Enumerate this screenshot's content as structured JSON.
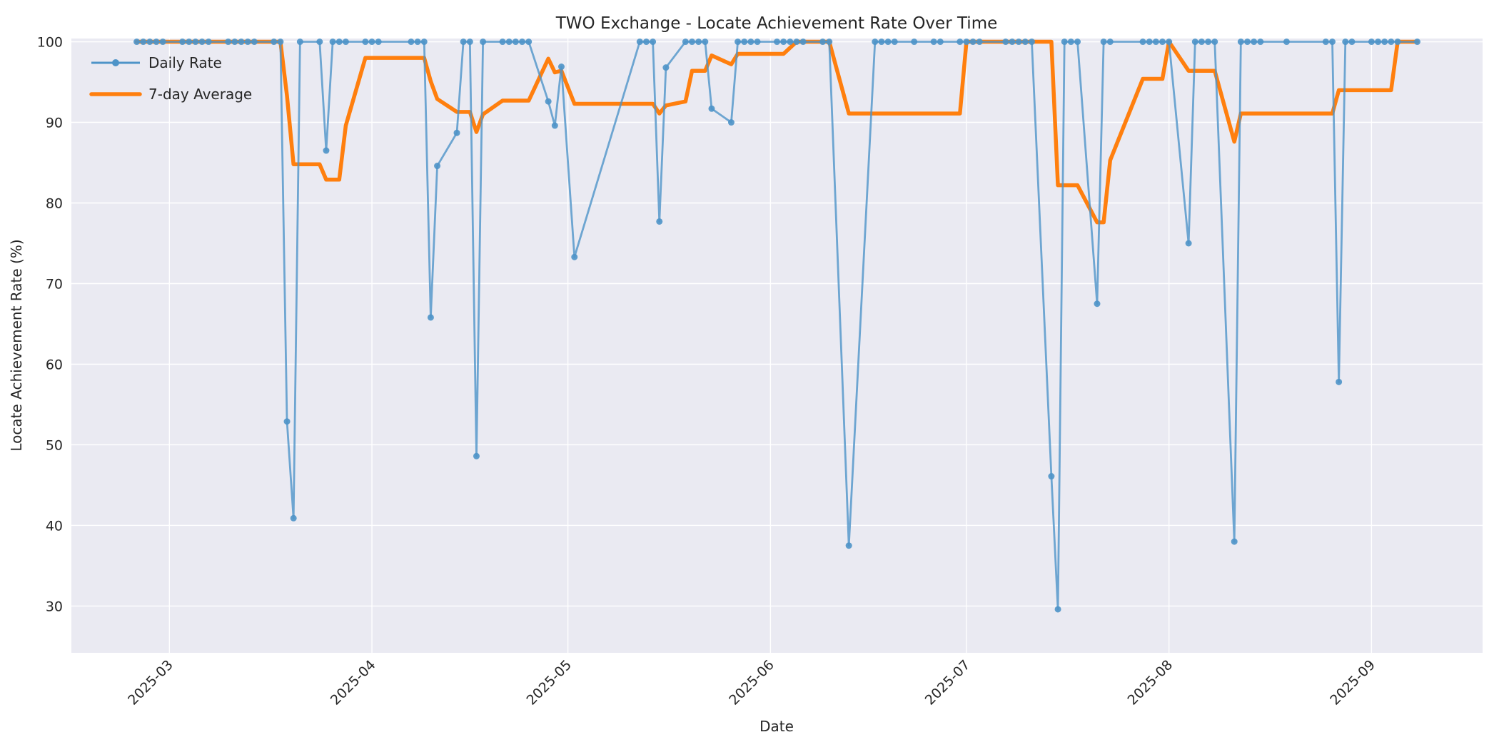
{
  "chart_data": {
    "type": "line",
    "title": "TWO Exchange - Locate Achievement Rate Over Time",
    "xlabel": "Date",
    "ylabel": "Locate Achievement Rate (%)",
    "x_tick_labels": [
      "2025-03",
      "2025-04",
      "2025-05",
      "2025-06",
      "2025-07",
      "2025-08",
      "2025-09"
    ],
    "x_tick_dates": [
      "2025-03-01",
      "2025-04-01",
      "2025-05-01",
      "2025-06-01",
      "2025-07-01",
      "2025-08-01",
      "2025-09-01"
    ],
    "y_ticks": [
      30,
      40,
      50,
      60,
      70,
      80,
      90,
      100
    ],
    "ylim": [
      24.2,
      100.4
    ],
    "xlim": [
      "2025-02-14",
      "2025-09-18"
    ],
    "grid": true,
    "legend_position": "upper-left",
    "colors": {
      "daily_line": "#4E94C8",
      "avg_line": "#FF7F0E",
      "plot_background": "#EAEAF2",
      "gridline": "#FFFFFF",
      "text": "#262626",
      "figure_background": "#FFFFFF"
    },
    "series": [
      {
        "name": "Daily Rate",
        "style": "line-with-markers",
        "points": [
          [
            "2025-02-24",
            100
          ],
          [
            "2025-02-25",
            100
          ],
          [
            "2025-02-26",
            100
          ],
          [
            "2025-02-27",
            100
          ],
          [
            "2025-02-28",
            100
          ],
          [
            "2025-03-03",
            100
          ],
          [
            "2025-03-04",
            100
          ],
          [
            "2025-03-05",
            100
          ],
          [
            "2025-03-06",
            100
          ],
          [
            "2025-03-07",
            100
          ],
          [
            "2025-03-10",
            100
          ],
          [
            "2025-03-11",
            100
          ],
          [
            "2025-03-12",
            100
          ],
          [
            "2025-03-13",
            100
          ],
          [
            "2025-03-14",
            100
          ],
          [
            "2025-03-17",
            100
          ],
          [
            "2025-03-18",
            100
          ],
          [
            "2025-03-19",
            52.9
          ],
          [
            "2025-03-20",
            40.9
          ],
          [
            "2025-03-21",
            100
          ],
          [
            "2025-03-24",
            100
          ],
          [
            "2025-03-25",
            86.5
          ],
          [
            "2025-03-26",
            100
          ],
          [
            "2025-03-27",
            100
          ],
          [
            "2025-03-28",
            100
          ],
          [
            "2025-03-31",
            100
          ],
          [
            "2025-04-01",
            100
          ],
          [
            "2025-04-02",
            100
          ],
          [
            "2025-04-07",
            100
          ],
          [
            "2025-04-08",
            100
          ],
          [
            "2025-04-09",
            100
          ],
          [
            "2025-04-10",
            65.8
          ],
          [
            "2025-04-11",
            84.6
          ],
          [
            "2025-04-14",
            88.7
          ],
          [
            "2025-04-15",
            100
          ],
          [
            "2025-04-16",
            100
          ],
          [
            "2025-04-17",
            48.6
          ],
          [
            "2025-04-18",
            100
          ],
          [
            "2025-04-21",
            100
          ],
          [
            "2025-04-22",
            100
          ],
          [
            "2025-04-23",
            100
          ],
          [
            "2025-04-24",
            100
          ],
          [
            "2025-04-25",
            100
          ],
          [
            "2025-04-28",
            92.6
          ],
          [
            "2025-04-29",
            89.6
          ],
          [
            "2025-04-30",
            96.9
          ],
          [
            "2025-05-02",
            73.3
          ],
          [
            "2025-05-12",
            100
          ],
          [
            "2025-05-13",
            100
          ],
          [
            "2025-05-14",
            100
          ],
          [
            "2025-05-15",
            77.7
          ],
          [
            "2025-05-16",
            96.8
          ],
          [
            "2025-05-19",
            100
          ],
          [
            "2025-05-20",
            100
          ],
          [
            "2025-05-21",
            100
          ],
          [
            "2025-05-22",
            100
          ],
          [
            "2025-05-23",
            91.7
          ],
          [
            "2025-05-26",
            90.0
          ],
          [
            "2025-05-27",
            100
          ],
          [
            "2025-05-28",
            100
          ],
          [
            "2025-05-29",
            100
          ],
          [
            "2025-05-30",
            100
          ],
          [
            "2025-06-02",
            100
          ],
          [
            "2025-06-03",
            100
          ],
          [
            "2025-06-04",
            100
          ],
          [
            "2025-06-05",
            100
          ],
          [
            "2025-06-06",
            100
          ],
          [
            "2025-06-09",
            100
          ],
          [
            "2025-06-10",
            100
          ],
          [
            "2025-06-13",
            37.5
          ],
          [
            "2025-06-17",
            100
          ],
          [
            "2025-06-18",
            100
          ],
          [
            "2025-06-19",
            100
          ],
          [
            "2025-06-20",
            100
          ],
          [
            "2025-06-23",
            100
          ],
          [
            "2025-06-26",
            100
          ],
          [
            "2025-06-27",
            100
          ],
          [
            "2025-06-30",
            100
          ],
          [
            "2025-07-01",
            100
          ],
          [
            "2025-07-02",
            100
          ],
          [
            "2025-07-03",
            100
          ],
          [
            "2025-07-07",
            100
          ],
          [
            "2025-07-08",
            100
          ],
          [
            "2025-07-09",
            100
          ],
          [
            "2025-07-10",
            100
          ],
          [
            "2025-07-11",
            100
          ],
          [
            "2025-07-14",
            46.1
          ],
          [
            "2025-07-15",
            29.6
          ],
          [
            "2025-07-16",
            100
          ],
          [
            "2025-07-17",
            100
          ],
          [
            "2025-07-18",
            100
          ],
          [
            "2025-07-21",
            67.5
          ],
          [
            "2025-07-22",
            100
          ],
          [
            "2025-07-23",
            100
          ],
          [
            "2025-07-28",
            100
          ],
          [
            "2025-07-29",
            100
          ],
          [
            "2025-07-30",
            100
          ],
          [
            "2025-07-31",
            100
          ],
          [
            "2025-08-01",
            100
          ],
          [
            "2025-08-04",
            75.0
          ],
          [
            "2025-08-05",
            100
          ],
          [
            "2025-08-06",
            100
          ],
          [
            "2025-08-07",
            100
          ],
          [
            "2025-08-08",
            100
          ],
          [
            "2025-08-11",
            38.0
          ],
          [
            "2025-08-12",
            100
          ],
          [
            "2025-08-13",
            100
          ],
          [
            "2025-08-14",
            100
          ],
          [
            "2025-08-15",
            100
          ],
          [
            "2025-08-19",
            100
          ],
          [
            "2025-08-25",
            100
          ],
          [
            "2025-08-26",
            100
          ],
          [
            "2025-08-27",
            57.8
          ],
          [
            "2025-08-28",
            100
          ],
          [
            "2025-08-29",
            100
          ],
          [
            "2025-09-01",
            100
          ],
          [
            "2025-09-02",
            100
          ],
          [
            "2025-09-03",
            100
          ],
          [
            "2025-09-04",
            100
          ],
          [
            "2025-09-05",
            100
          ],
          [
            "2025-09-08",
            100
          ]
        ]
      },
      {
        "name": "7-day Average",
        "style": "line",
        "points": [
          [
            "2025-02-24",
            100
          ],
          [
            "2025-03-18",
            100
          ],
          [
            "2025-03-19",
            93.3
          ],
          [
            "2025-03-20",
            84.8
          ],
          [
            "2025-03-24",
            84.8
          ],
          [
            "2025-03-25",
            82.9
          ],
          [
            "2025-03-27",
            82.9
          ],
          [
            "2025-03-28",
            89.6
          ],
          [
            "2025-03-31",
            98.0
          ],
          [
            "2025-04-09",
            98.0
          ],
          [
            "2025-04-10",
            95.1
          ],
          [
            "2025-04-11",
            92.9
          ],
          [
            "2025-04-14",
            91.3
          ],
          [
            "2025-04-16",
            91.3
          ],
          [
            "2025-04-17",
            88.8
          ],
          [
            "2025-04-18",
            91.0
          ],
          [
            "2025-04-21",
            92.7
          ],
          [
            "2025-04-25",
            92.7
          ],
          [
            "2025-04-28",
            97.9
          ],
          [
            "2025-04-29",
            96.2
          ],
          [
            "2025-04-30",
            96.4
          ],
          [
            "2025-05-02",
            92.3
          ],
          [
            "2025-05-14",
            92.3
          ],
          [
            "2025-05-15",
            91.1
          ],
          [
            "2025-05-16",
            92.1
          ],
          [
            "2025-05-19",
            92.6
          ],
          [
            "2025-05-20",
            96.4
          ],
          [
            "2025-05-22",
            96.4
          ],
          [
            "2025-05-23",
            98.3
          ],
          [
            "2025-05-26",
            97.2
          ],
          [
            "2025-05-27",
            98.5
          ],
          [
            "2025-06-03",
            98.5
          ],
          [
            "2025-06-05",
            100
          ],
          [
            "2025-06-10",
            100
          ],
          [
            "2025-06-13",
            91.1
          ],
          [
            "2025-06-30",
            91.1
          ],
          [
            "2025-07-01",
            100
          ],
          [
            "2025-07-14",
            100
          ],
          [
            "2025-07-15",
            82.2
          ],
          [
            "2025-07-18",
            82.2
          ],
          [
            "2025-07-21",
            77.6
          ],
          [
            "2025-07-22",
            77.6
          ],
          [
            "2025-07-23",
            85.3
          ],
          [
            "2025-07-28",
            95.4
          ],
          [
            "2025-07-31",
            95.4
          ],
          [
            "2025-08-01",
            100
          ],
          [
            "2025-08-04",
            96.4
          ],
          [
            "2025-08-08",
            96.4
          ],
          [
            "2025-08-11",
            87.6
          ],
          [
            "2025-08-12",
            91.1
          ],
          [
            "2025-08-26",
            91.1
          ],
          [
            "2025-08-27",
            94.0
          ],
          [
            "2025-09-04",
            94.0
          ],
          [
            "2025-09-05",
            100
          ],
          [
            "2025-09-08",
            100
          ]
        ]
      }
    ]
  }
}
